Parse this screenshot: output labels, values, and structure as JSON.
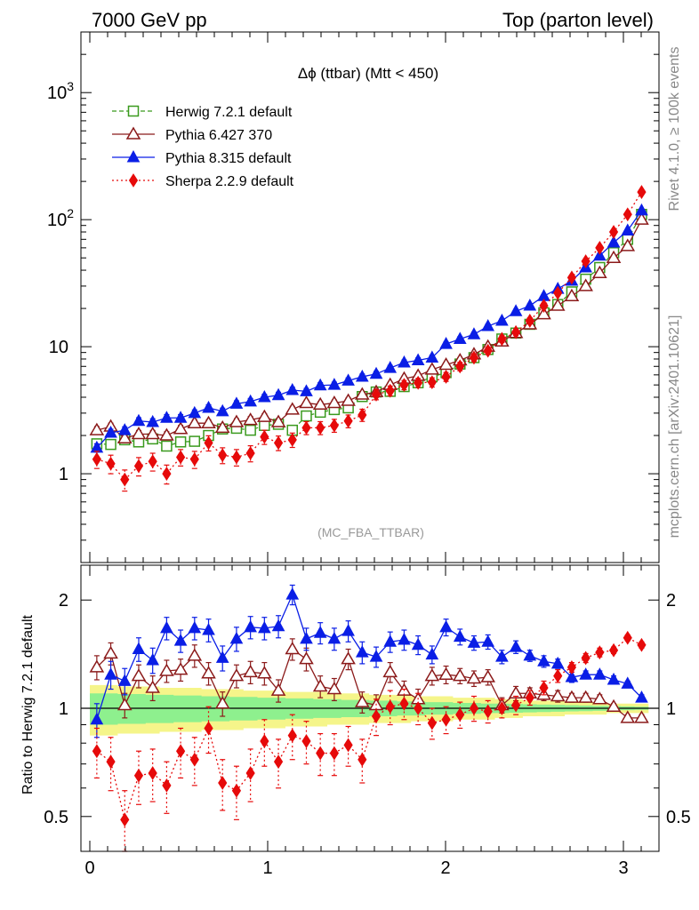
{
  "header": {
    "left": "7000 GeV pp",
    "right": "Top (parton level)"
  },
  "side_text": {
    "rivet": "Rivet 4.1.0, ≥ 100k events",
    "mcplots": "mcplots.cern.ch [arXiv:2401.10621]"
  },
  "chart_data": [
    {
      "type": "line",
      "panel": "main",
      "title": "Δϕ (ttbar) (Mtt < 450)",
      "watermark": "(MC_FBA_TTBAR)",
      "yscale": "log",
      "xlim": [
        -0.05,
        3.2
      ],
      "ylim": [
        0.2,
        3000
      ],
      "yticks": [
        {
          "value": 1,
          "label": "1"
        },
        {
          "value": 10,
          "label": "10"
        },
        {
          "value": 100,
          "label": "10",
          "sup": "2"
        },
        {
          "value": 1000,
          "label": "10",
          "sup": "3"
        }
      ],
      "legend_position": "top-left",
      "x": [
        0.0393,
        0.1178,
        0.1963,
        0.2749,
        0.3534,
        0.432,
        0.5105,
        0.589,
        0.6676,
        0.7461,
        0.8247,
        0.9032,
        0.9817,
        1.0603,
        1.1388,
        1.2174,
        1.2959,
        1.3744,
        1.453,
        1.5315,
        1.6101,
        1.6886,
        1.7671,
        1.8457,
        1.9242,
        2.0028,
        2.0813,
        2.1598,
        2.2384,
        2.3169,
        2.3955,
        2.474,
        2.5525,
        2.6311,
        2.7096,
        2.7882,
        2.8667,
        2.9452,
        3.0238,
        3.1023
      ],
      "series": [
        {
          "name": "Herwig 7.2.1 default",
          "color": "#3a9a1e",
          "marker": "square-open",
          "line": "dashed",
          "values": [
            1.72,
            1.7,
            1.85,
            1.78,
            1.88,
            1.65,
            1.78,
            1.8,
            2.0,
            2.25,
            2.28,
            2.2,
            2.4,
            2.45,
            2.2,
            2.85,
            3.05,
            3.2,
            3.3,
            4.05,
            4.4,
            4.45,
            4.85,
            5.2,
            5.8,
            6.25,
            7.3,
            8.2,
            9.5,
            11.5,
            12.8,
            15.0,
            18.5,
            21.5,
            27.0,
            34.0,
            42.0,
            55.0,
            70.0,
            110.0
          ],
          "errors": [
            0.12,
            0.11,
            0.12,
            0.11,
            0.12,
            0.1,
            0.11,
            0.11,
            0.12,
            0.13,
            0.13,
            0.13,
            0.14,
            0.14,
            0.13,
            0.15,
            0.16,
            0.17,
            0.17,
            0.2,
            0.21,
            0.21,
            0.23,
            0.24,
            0.26,
            0.28,
            0.3,
            0.33,
            0.38,
            0.45,
            0.5,
            0.55,
            0.65,
            0.75,
            0.9,
            1.1,
            1.3,
            1.7,
            2.1,
            3.0
          ]
        },
        {
          "name": "Pythia 6.427 370",
          "color": "#8b1a1a",
          "marker": "triangle-open",
          "line": "solid",
          "values": [
            2.2,
            2.35,
            1.9,
            2.05,
            2.05,
            2.0,
            2.25,
            2.5,
            2.5,
            2.3,
            2.55,
            2.65,
            2.8,
            2.55,
            3.2,
            3.6,
            3.5,
            3.6,
            3.75,
            4.2,
            4.4,
            5.0,
            5.6,
            5.9,
            6.6,
            7.2,
            7.8,
            8.7,
            10.0,
            11.0,
            12.8,
            15.0,
            18.0,
            21.0,
            25.0,
            30.0,
            38.0,
            50.0,
            62.0,
            100.0
          ],
          "errors": [
            0.15,
            0.15,
            0.13,
            0.14,
            0.14,
            0.14,
            0.15,
            0.16,
            0.16,
            0.15,
            0.16,
            0.17,
            0.17,
            0.16,
            0.19,
            0.2,
            0.2,
            0.2,
            0.21,
            0.22,
            0.23,
            0.25,
            0.27,
            0.28,
            0.3,
            0.32,
            0.34,
            0.37,
            0.4,
            0.45,
            0.5,
            0.55,
            0.65,
            0.75,
            0.85,
            1.0,
            1.25,
            1.6,
            1.9,
            2.8
          ]
        },
        {
          "name": "Pythia 8.315 default",
          "color": "#0a1ee6",
          "marker": "triangle-filled",
          "line": "solid",
          "values": [
            1.6,
            2.1,
            2.2,
            2.6,
            2.55,
            2.75,
            2.75,
            3.0,
            3.3,
            3.1,
            3.55,
            3.7,
            4.0,
            4.15,
            4.55,
            4.45,
            4.95,
            5.0,
            5.4,
            5.8,
            6.1,
            6.8,
            7.5,
            7.8,
            8.2,
            10.5,
            11.5,
            12.5,
            14.5,
            16.0,
            19.0,
            21.0,
            25.0,
            28.5,
            33.0,
            42.0,
            52.0,
            66.0,
            82.0,
            118.0
          ],
          "errors": [
            0.12,
            0.14,
            0.14,
            0.16,
            0.16,
            0.17,
            0.17,
            0.18,
            0.19,
            0.18,
            0.2,
            0.21,
            0.22,
            0.23,
            0.25,
            0.24,
            0.26,
            0.26,
            0.28,
            0.29,
            0.3,
            0.33,
            0.36,
            0.37,
            0.38,
            0.45,
            0.48,
            0.52,
            0.58,
            0.62,
            0.7,
            0.75,
            0.85,
            0.95,
            1.05,
            1.3,
            1.5,
            1.9,
            2.2,
            3.2
          ]
        },
        {
          "name": "Sherpa 2.2.9 default",
          "color": "#e60a0a",
          "marker": "diamond-filled",
          "line": "dotted",
          "values": [
            1.3,
            1.2,
            0.9,
            1.15,
            1.25,
            1.0,
            1.35,
            1.3,
            1.75,
            1.4,
            1.35,
            1.45,
            1.95,
            1.75,
            1.85,
            2.3,
            2.3,
            2.4,
            2.6,
            2.9,
            4.2,
            4.5,
            5.0,
            5.2,
            5.25,
            5.8,
            7.0,
            8.2,
            9.3,
            11.5,
            13.0,
            16.0,
            21.0,
            26.5,
            35.0,
            47.0,
            60.0,
            80.0,
            110.0,
            165.0
          ],
          "errors": [
            0.2,
            0.2,
            0.17,
            0.19,
            0.2,
            0.17,
            0.2,
            0.2,
            0.24,
            0.2,
            0.2,
            0.21,
            0.25,
            0.23,
            0.24,
            0.27,
            0.27,
            0.28,
            0.3,
            0.32,
            0.38,
            0.4,
            0.42,
            0.43,
            0.44,
            0.47,
            0.53,
            0.58,
            0.63,
            0.72,
            0.78,
            0.88,
            1.05,
            1.25,
            1.5,
            1.85,
            2.2,
            2.8,
            3.6,
            5.0
          ]
        }
      ]
    },
    {
      "type": "line",
      "panel": "ratio",
      "ylabel": "Ratio to Herwig 7.2.1 default",
      "yscale": "log",
      "ylim": [
        0.4,
        2.5
      ],
      "yticks": [
        {
          "value": 0.5,
          "label": "0.5"
        },
        {
          "value": 1,
          "label": "1"
        },
        {
          "value": 2,
          "label": "2"
        }
      ],
      "xticks": [
        {
          "value": 0,
          "label": "0"
        },
        {
          "value": 1,
          "label": "1"
        },
        {
          "value": 2,
          "label": "2"
        },
        {
          "value": 3,
          "label": "3"
        }
      ],
      "band": {
        "yellow_half_width": [
          0.16,
          0.16,
          0.15,
          0.15,
          0.15,
          0.14,
          0.14,
          0.14,
          0.13,
          0.13,
          0.13,
          0.12,
          0.12,
          0.12,
          0.11,
          0.11,
          0.11,
          0.1,
          0.1,
          0.1,
          0.09,
          0.09,
          0.09,
          0.08,
          0.08,
          0.08,
          0.07,
          0.07,
          0.07,
          0.06,
          0.06,
          0.05,
          0.05,
          0.05,
          0.04,
          0.04,
          0.04,
          0.03,
          0.03,
          0.03
        ],
        "green_half_width": [
          0.1,
          0.1,
          0.095,
          0.095,
          0.09,
          0.09,
          0.085,
          0.085,
          0.08,
          0.08,
          0.075,
          0.075,
          0.07,
          0.07,
          0.065,
          0.065,
          0.06,
          0.06,
          0.055,
          0.055,
          0.05,
          0.05,
          0.045,
          0.045,
          0.04,
          0.04,
          0.035,
          0.035,
          0.03,
          0.03,
          0.028,
          0.026,
          0.024,
          0.022,
          0.02,
          0.018,
          0.016,
          0.014,
          0.012,
          0.01
        ]
      },
      "series": [
        {
          "name": "Pythia 6.427 370",
          "color": "#8b1a1a",
          "marker": "triangle-open",
          "line": "solid",
          "values": [
            1.3,
            1.42,
            1.02,
            1.23,
            1.14,
            1.27,
            1.28,
            1.4,
            1.25,
            1.03,
            1.23,
            1.26,
            1.25,
            1.12,
            1.46,
            1.37,
            1.15,
            1.13,
            1.37,
            1.04,
            1.02,
            1.26,
            1.12,
            1.06,
            1.23,
            1.24,
            1.23,
            1.21,
            1.22,
            1.02,
            1.1,
            1.1,
            1.09,
            1.08,
            1.07,
            1.07,
            1.06,
            1.01,
            0.94,
            0.94
          ],
          "errors": [
            0.1,
            0.1,
            0.08,
            0.09,
            0.09,
            0.09,
            0.09,
            0.1,
            0.09,
            0.08,
            0.09,
            0.09,
            0.09,
            0.08,
            0.1,
            0.1,
            0.08,
            0.08,
            0.09,
            0.07,
            0.07,
            0.08,
            0.07,
            0.07,
            0.07,
            0.07,
            0.06,
            0.06,
            0.06,
            0.05,
            0.05,
            0.04,
            0.04,
            0.04,
            0.03,
            0.03,
            0.03,
            0.02,
            0.02,
            0.02
          ]
        },
        {
          "name": "Pythia 8.315 default",
          "color": "#0a1ee6",
          "marker": "triangle-filled",
          "line": "solid",
          "values": [
            0.93,
            1.24,
            1.19,
            1.46,
            1.36,
            1.67,
            1.54,
            1.67,
            1.65,
            1.38,
            1.56,
            1.68,
            1.67,
            1.69,
            2.07,
            1.56,
            1.62,
            1.56,
            1.64,
            1.43,
            1.39,
            1.53,
            1.55,
            1.5,
            1.41,
            1.68,
            1.58,
            1.52,
            1.53,
            1.39,
            1.48,
            1.4,
            1.35,
            1.33,
            1.22,
            1.24,
            1.24,
            1.2,
            1.17,
            1.07
          ],
          "errors": [
            0.1,
            0.11,
            0.1,
            0.11,
            0.11,
            0.12,
            0.11,
            0.12,
            0.12,
            0.11,
            0.12,
            0.12,
            0.12,
            0.12,
            0.13,
            0.11,
            0.11,
            0.11,
            0.11,
            0.1,
            0.09,
            0.1,
            0.1,
            0.09,
            0.08,
            0.09,
            0.08,
            0.07,
            0.07,
            0.06,
            0.06,
            0.05,
            0.05,
            0.04,
            0.04,
            0.03,
            0.03,
            0.03,
            0.02,
            0.02
          ]
        },
        {
          "name": "Sherpa 2.2.9 default",
          "color": "#e60a0a",
          "marker": "diamond-filled",
          "line": "dotted",
          "values": [
            0.76,
            0.71,
            0.49,
            0.65,
            0.66,
            0.61,
            0.76,
            0.72,
            0.88,
            0.62,
            0.59,
            0.66,
            0.81,
            0.71,
            0.84,
            0.81,
            0.75,
            0.75,
            0.79,
            0.72,
            0.95,
            1.01,
            1.03,
            1.0,
            0.91,
            0.93,
            0.96,
            1.0,
            0.98,
            1.0,
            1.02,
            1.07,
            1.14,
            1.23,
            1.3,
            1.38,
            1.43,
            1.45,
            1.57,
            1.5
          ],
          "errors": [
            0.12,
            0.12,
            0.1,
            0.11,
            0.11,
            0.1,
            0.12,
            0.11,
            0.13,
            0.1,
            0.1,
            0.11,
            0.12,
            0.11,
            0.12,
            0.11,
            0.1,
            0.1,
            0.1,
            0.1,
            0.11,
            0.11,
            0.1,
            0.1,
            0.09,
            0.08,
            0.08,
            0.08,
            0.07,
            0.06,
            0.06,
            0.05,
            0.05,
            0.05,
            0.04,
            0.04,
            0.04,
            0.03,
            0.03,
            0.03
          ]
        }
      ],
      "reference_line": 1
    }
  ]
}
